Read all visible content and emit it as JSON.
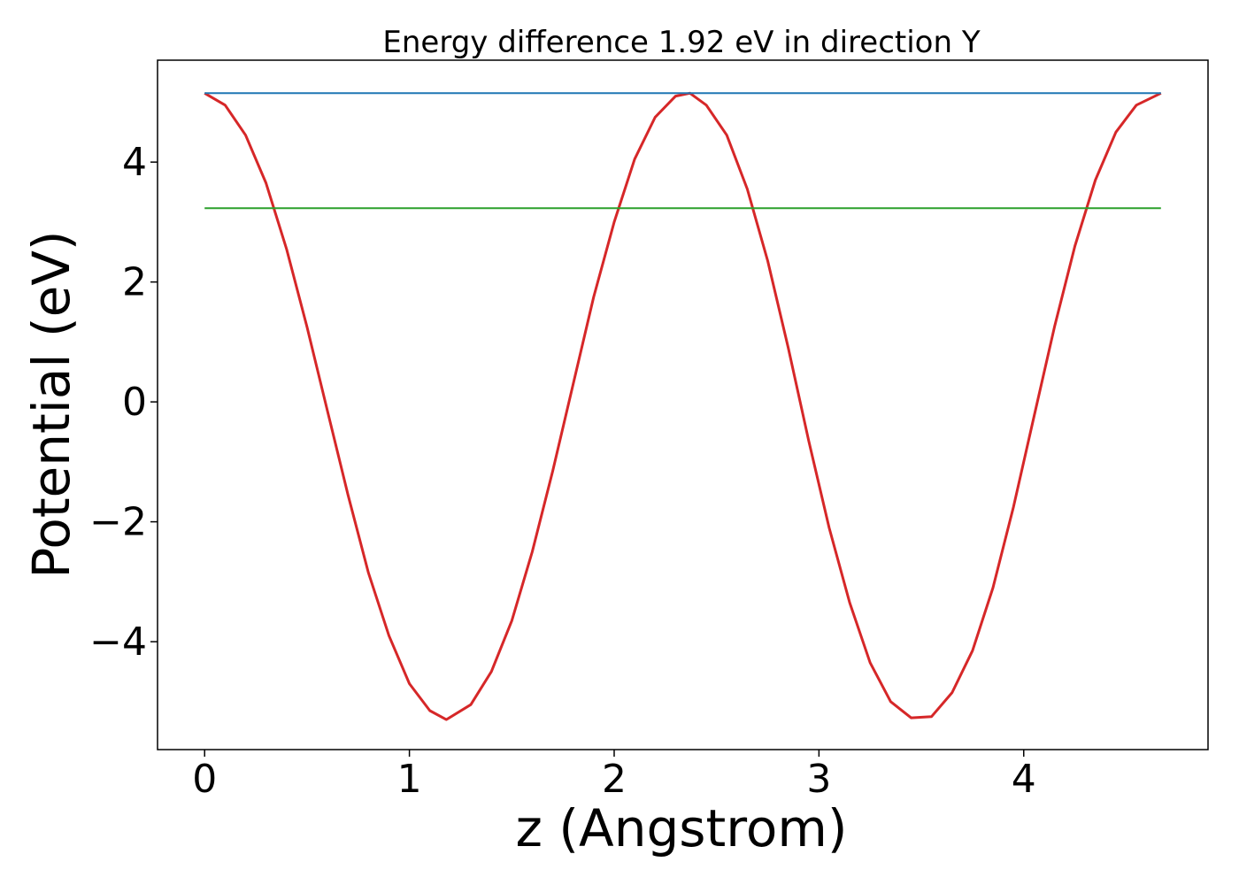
{
  "chart_data": {
    "type": "line",
    "title": "Energy difference 1.92 eV in direction Y",
    "xlabel": "z (Angstrom)",
    "ylabel": "Potential (eV)",
    "xlim": [
      -0.23,
      4.9
    ],
    "ylim": [
      -5.8,
      5.7
    ],
    "xticks": [
      {
        "value": 0,
        "label": "0"
      },
      {
        "value": 1,
        "label": "1"
      },
      {
        "value": 2,
        "label": "2"
      },
      {
        "value": 3,
        "label": "3"
      },
      {
        "value": 4,
        "label": "4"
      }
    ],
    "yticks": [
      {
        "value": -4,
        "label": "−4"
      },
      {
        "value": -2,
        "label": "−2"
      },
      {
        "value": 0,
        "label": "0"
      },
      {
        "value": 2,
        "label": "2"
      },
      {
        "value": 4,
        "label": "4"
      }
    ],
    "grid": false,
    "legend": "none",
    "series": [
      {
        "color": "#d62728",
        "x": [
          0.0,
          0.1,
          0.2,
          0.3,
          0.4,
          0.5,
          0.6,
          0.7,
          0.8,
          0.9,
          1.0,
          1.1,
          1.18,
          1.3,
          1.4,
          1.5,
          1.6,
          1.7,
          1.8,
          1.9,
          2.0,
          2.1,
          2.2,
          2.3,
          2.37,
          2.45,
          2.55,
          2.65,
          2.75,
          2.85,
          2.95,
          3.05,
          3.15,
          3.25,
          3.35,
          3.45,
          3.55,
          3.65,
          3.75,
          3.85,
          3.95,
          4.05,
          4.15,
          4.25,
          4.35,
          4.45,
          4.55,
          4.67
        ],
        "y": [
          5.15,
          4.95,
          4.45,
          3.65,
          2.55,
          1.25,
          -0.15,
          -1.55,
          -2.85,
          -3.9,
          -4.7,
          -5.15,
          -5.3,
          -5.05,
          -4.5,
          -3.65,
          -2.5,
          -1.15,
          0.3,
          1.75,
          3.0,
          4.05,
          4.75,
          5.1,
          5.15,
          4.95,
          4.45,
          3.55,
          2.35,
          0.9,
          -0.65,
          -2.1,
          -3.35,
          -4.35,
          -5.0,
          -5.27,
          -5.25,
          -4.85,
          -4.15,
          -3.1,
          -1.75,
          -0.25,
          1.25,
          2.6,
          3.7,
          4.5,
          4.95,
          5.15
        ]
      },
      {
        "color": "#1f77b4",
        "x": [
          0.0,
          4.67
        ],
        "y": [
          5.15,
          5.15
        ]
      },
      {
        "color": "#2ca02c",
        "x": [
          0.0,
          4.67
        ],
        "y": [
          3.23,
          3.23
        ]
      }
    ]
  }
}
